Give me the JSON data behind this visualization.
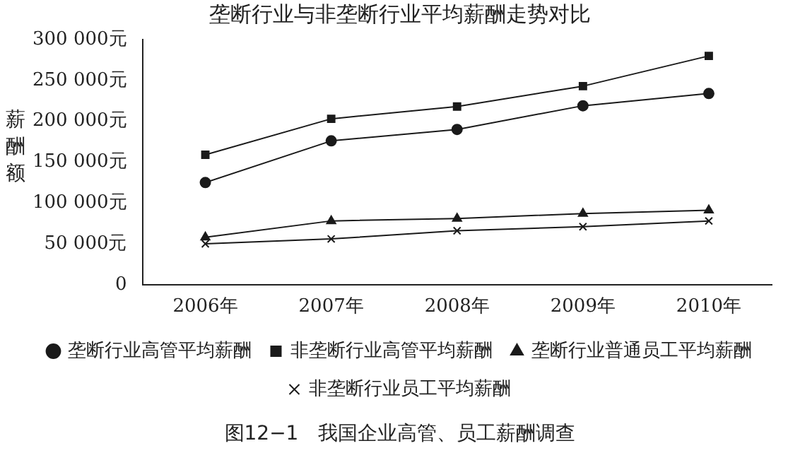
{
  "chart_data": {
    "type": "line",
    "title": "垄断行业与非垄断行业平均薪酬走势对比",
    "ylabel": "薪酬额",
    "categories": [
      "2006年",
      "2007年",
      "2008年",
      "2009年",
      "2010年"
    ],
    "series": [
      {
        "name": "垄断行业高管平均薪酬",
        "color": "#1a1a1a",
        "marker": "circle",
        "values": [
          125000,
          176000,
          190000,
          219000,
          234000
        ]
      },
      {
        "name": "非垄断行业高管平均薪酬",
        "color": "#1a1a1a",
        "marker": "square",
        "values": [
          159000,
          203000,
          218000,
          243000,
          280000
        ]
      },
      {
        "name": "垄断行业普通员工平均薪酬",
        "color": "#1a1a1a",
        "marker": "triangle",
        "values": [
          58000,
          78000,
          81000,
          87000,
          91000
        ]
      },
      {
        "name": "非垄断行业员工平均薪酬",
        "color": "#1a1a1a",
        "marker": "cross",
        "values": [
          50000,
          56000,
          66000,
          71000,
          78000
        ]
      }
    ],
    "ylim": [
      0,
      300000
    ],
    "yticks": [
      0,
      {
        "value": 50000,
        "label": "50 000元"
      },
      {
        "value": 100000,
        "label": "100 000元"
      },
      {
        "value": 150000,
        "label": "150 000元"
      },
      {
        "value": 200000,
        "label": "200 000元"
      },
      {
        "value": 250000,
        "label": "250 000元"
      },
      {
        "value": 300000,
        "label": "300 000元"
      }
    ],
    "grid": false,
    "legend": "bottom",
    "line_style": "solid",
    "annotations": [
      "图12−1　我国企业高管、员工薪酬调查"
    ]
  }
}
